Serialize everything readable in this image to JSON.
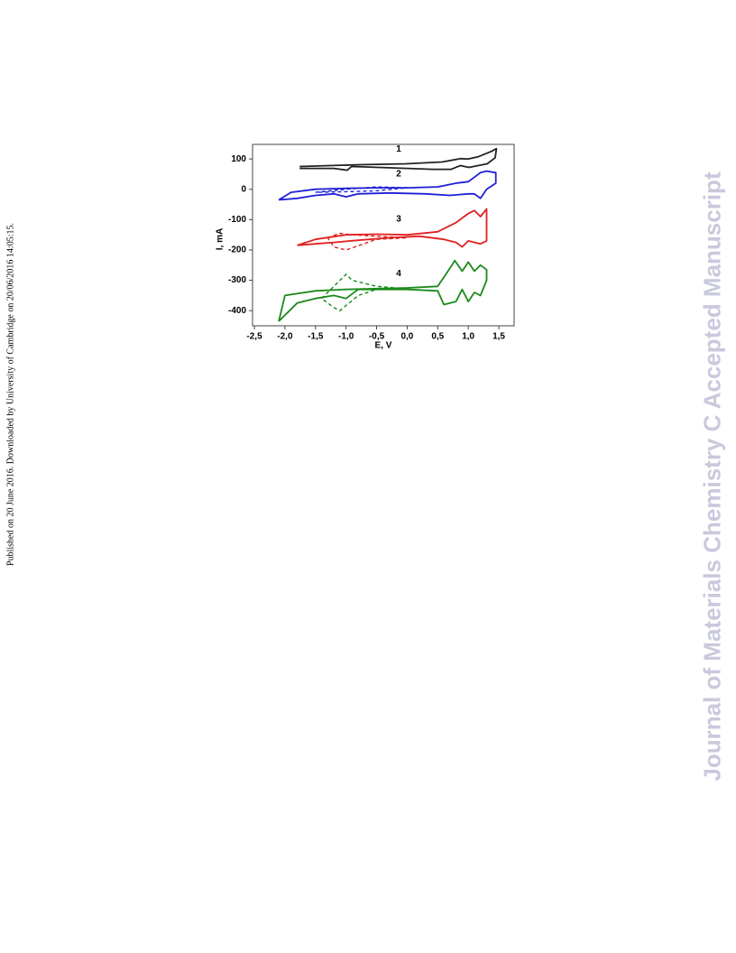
{
  "side_note": "Published on 20 June 2016. Downloaded by University of Cambridge on 20/06/2016 14:05:15.",
  "watermark": "Journal of Materials Chemistry C Accepted Manuscript",
  "chart_data": {
    "type": "line",
    "x_label": "E, V",
    "y_label": "I, mA",
    "xlim": [
      -2.53,
      1.75
    ],
    "ylim": [
      -450,
      148
    ],
    "xticks": [
      {
        "value": -2.5,
        "label": "-2,5"
      },
      {
        "value": -2.0,
        "label": "-2,0"
      },
      {
        "value": -1.5,
        "label": "-1,5"
      },
      {
        "value": -1.0,
        "label": "-1,0"
      },
      {
        "value": -0.5,
        "label": "-0,5"
      },
      {
        "value": 0.0,
        "label": "0,0"
      },
      {
        "value": 0.5,
        "label": "0,5"
      },
      {
        "value": 1.0,
        "label": "1,0"
      },
      {
        "value": 1.5,
        "label": "1,5"
      }
    ],
    "yticks": [
      100,
      0,
      -100,
      -200,
      -300,
      -400
    ],
    "series": [
      {
        "name": "1",
        "color": "#222222",
        "dash": false,
        "x": [
          -1.76,
          -0.76,
          -0.02,
          0.57,
          0.87,
          1.0,
          1.16,
          1.38,
          1.46,
          1.44,
          1.31,
          1.01,
          0.87,
          0.72,
          0.42,
          -0.46,
          -0.91,
          -0.98,
          -1.2,
          -1.76
        ],
        "values": [
          75,
          81,
          84,
          90,
          101,
          100,
          107,
          125,
          134,
          104,
          84,
          72,
          78,
          66,
          66,
          72,
          75,
          63,
          69,
          69
        ]
      },
      {
        "name": "2",
        "color": "#1f1fd6",
        "dash": false,
        "x": [
          -2.1,
          -1.9,
          -1.5,
          -1.0,
          -0.5,
          0,
          0.5,
          0.8,
          1.0,
          1.2,
          1.3,
          1.45,
          1.45,
          1.3,
          1.2,
          1.1,
          1.0,
          0.7,
          0.3,
          -0.3,
          -0.8,
          -1.0,
          -1.2,
          -1.5,
          -1.8,
          -2.1
        ],
        "values": [
          -35,
          -10,
          0,
          3,
          5,
          5,
          8,
          20,
          25,
          55,
          60,
          55,
          20,
          0,
          -30,
          -15,
          -15,
          -20,
          -15,
          -12,
          -15,
          -25,
          -15,
          -20,
          -30,
          -35
        ]
      },
      {
        "color": "#1f1fd6",
        "dash": true,
        "x": [
          -1.5,
          -1.0,
          -0.5,
          0,
          -0.5,
          -1.0,
          -1.5
        ],
        "values": [
          -10,
          0,
          8,
          5,
          -5,
          -8,
          -10
        ]
      },
      {
        "name": "3",
        "color": "#e02020",
        "dash": false,
        "x": [
          -1.8,
          -1.5,
          -1.0,
          -0.5,
          0,
          0.5,
          0.8,
          1.0,
          1.1,
          1.2,
          1.3,
          1.3,
          1.2,
          1.0,
          0.9,
          0.8,
          0.6,
          0.2,
          -0.3,
          -0.8,
          -1.2,
          -1.5,
          -1.8
        ],
        "values": [
          -185,
          -165,
          -150,
          -148,
          -150,
          -140,
          -110,
          -80,
          -70,
          -90,
          -65,
          -170,
          -180,
          -170,
          -190,
          -175,
          -165,
          -155,
          -160,
          -168,
          -175,
          -180,
          -185
        ]
      },
      {
        "color": "#e02020",
        "dash": true,
        "x": [
          -1.3,
          -1.1,
          -0.9,
          -0.5,
          0,
          -0.5,
          -1.0,
          -1.2,
          -1.3
        ],
        "values": [
          -160,
          -145,
          -150,
          -155,
          -160,
          -165,
          -200,
          -190,
          -160
        ]
      },
      {
        "name": "4",
        "color": "#1a8a1a",
        "dash": false,
        "x": [
          -2.1,
          -2.0,
          -1.5,
          -1.0,
          0,
          0.5,
          0.7,
          0.78,
          0.9,
          1.0,
          1.1,
          1.2,
          1.3,
          1.3,
          1.2,
          1.1,
          1.0,
          0.9,
          0.8,
          0.6,
          0.5,
          0,
          -0.8,
          -1.0,
          -1.2,
          -1.5,
          -1.8,
          -2.1
        ],
        "values": [
          -435,
          -350,
          -335,
          -330,
          -325,
          -320,
          -260,
          -235,
          -270,
          -240,
          -270,
          -250,
          -265,
          -300,
          -350,
          -340,
          -370,
          -330,
          -370,
          -380,
          -335,
          -330,
          -330,
          -360,
          -350,
          -360,
          -375,
          -435
        ]
      },
      {
        "color": "#1a8a1a",
        "dash": true,
        "x": [
          -1.4,
          -1.2,
          -1.0,
          -0.9,
          -0.5,
          -0.2,
          -0.5,
          -0.8,
          -1.1,
          -1.2,
          -1.4
        ],
        "values": [
          -360,
          -320,
          -280,
          -300,
          -320,
          -325,
          -330,
          -350,
          -400,
          -390,
          -360
        ]
      }
    ]
  }
}
